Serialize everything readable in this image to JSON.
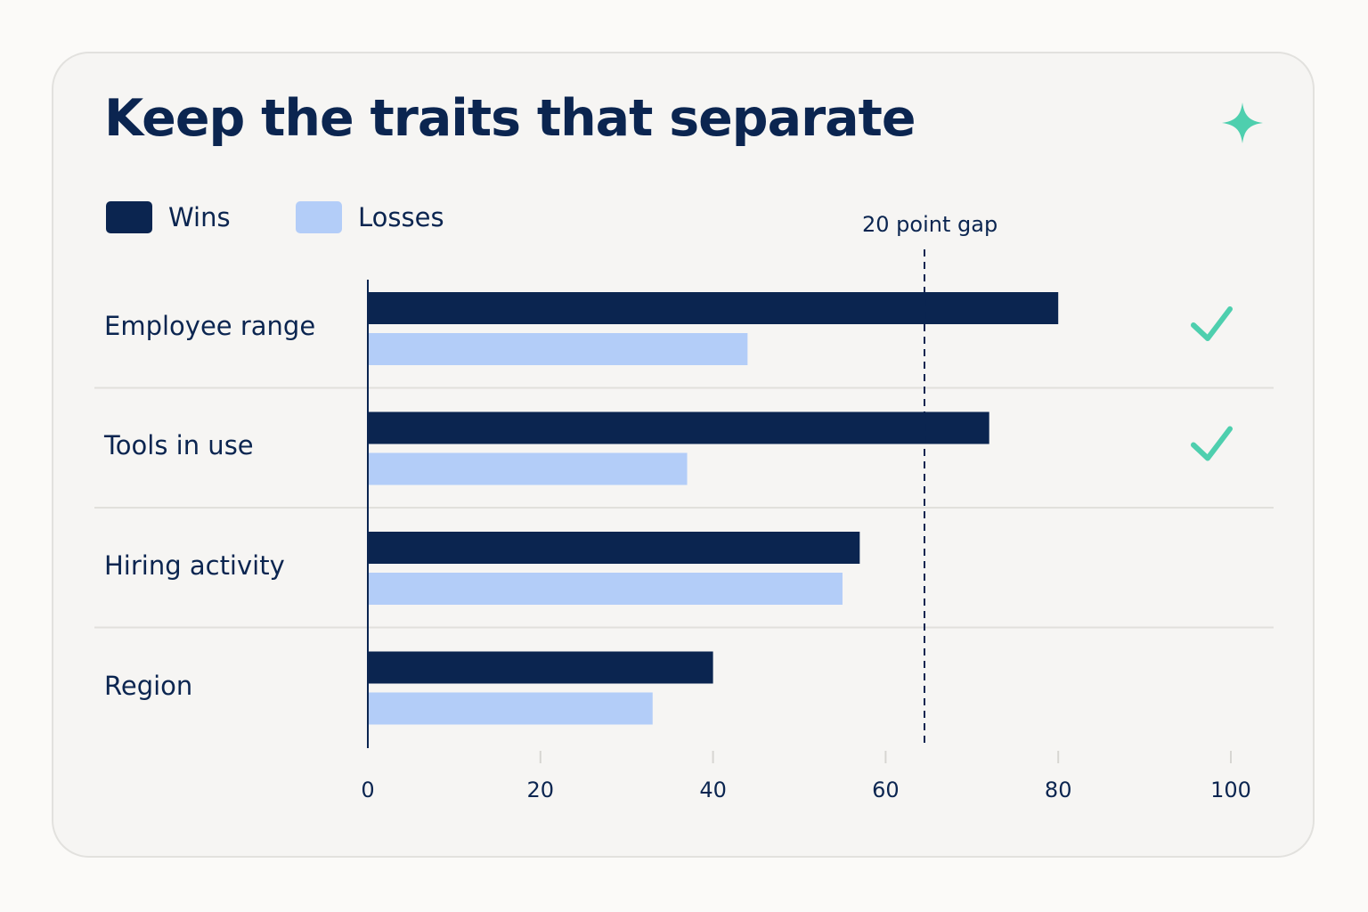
{
  "chart_data": {
    "type": "bar",
    "orientation": "horizontal",
    "title": "Keep the traits that separate",
    "categories": [
      "Employee range",
      "Tools in use",
      "Hiring activity",
      "Region"
    ],
    "series": [
      {
        "name": "Wins",
        "color": "#0b2550",
        "values": [
          80,
          72,
          57,
          40
        ]
      },
      {
        "name": "Losses",
        "color": "#b3cdf8",
        "values": [
          44,
          37,
          55,
          33
        ]
      }
    ],
    "x_ticks": [
      0,
      20,
      40,
      60,
      80,
      100
    ],
    "xlim": [
      0,
      100
    ],
    "xlabel": "",
    "ylabel": "",
    "legend_position": "top-left",
    "grid": false,
    "reference_line": {
      "value": 64.5,
      "label": "20 point gap",
      "style": "dashed"
    },
    "checkmarks": [
      true,
      true,
      false,
      false
    ],
    "accent_color": "#4ecfae",
    "icons": {
      "header": "sparkle-icon",
      "row_mark": "check-icon"
    }
  }
}
